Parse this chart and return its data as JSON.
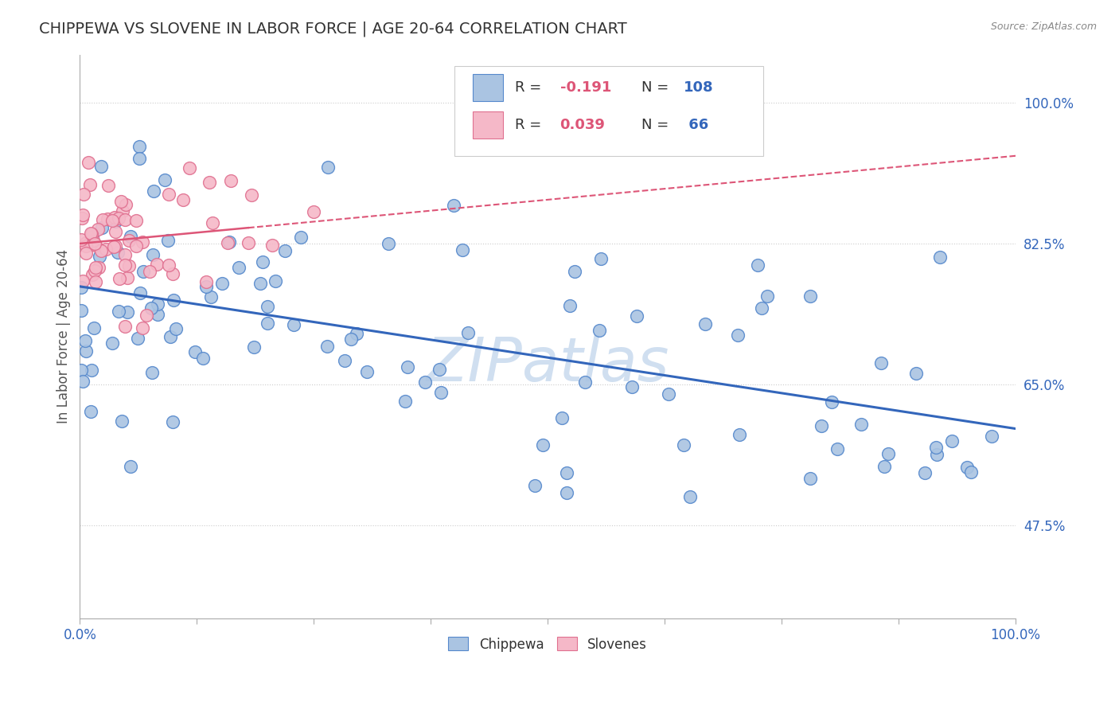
{
  "title": "CHIPPEWA VS SLOVENE IN LABOR FORCE | AGE 20-64 CORRELATION CHART",
  "source_text": "Source: ZipAtlas.com",
  "ylabel": "In Labor Force | Age 20-64",
  "y_tick_labels": [
    "47.5%",
    "65.0%",
    "82.5%",
    "100.0%"
  ],
  "y_tick_values": [
    0.475,
    0.65,
    0.825,
    1.0
  ],
  "xlim": [
    0.0,
    1.0
  ],
  "ylim": [
    0.36,
    1.06
  ],
  "chippewa_color": "#aac4e2",
  "chippewa_edge_color": "#5588cc",
  "slovene_color": "#f5b8c8",
  "slovene_edge_color": "#e07090",
  "trend1_color": "#3366bb",
  "trend2_color": "#dd5577",
  "watermark_color": "#d0dff0",
  "background_color": "#ffffff",
  "grid_color": "#cccccc",
  "title_color": "#333333",
  "ytick_color": "#3366bb",
  "xtick_color": "#3366bb",
  "legend_r_color": "#dd5577",
  "legend_n_color": "#3366bb",
  "legend_text_color": "#333333"
}
